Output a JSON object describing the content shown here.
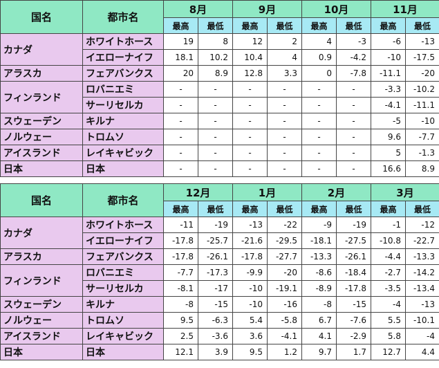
{
  "headers": {
    "country": "国名",
    "city": "都市名",
    "high": "最高",
    "low": "最低"
  },
  "table1": {
    "months": [
      "8月",
      "9月",
      "10月",
      "11月"
    ],
    "rows": [
      {
        "country": "カナダ",
        "city": "ホワイトホース",
        "v": [
          "19",
          "8",
          "12",
          "2",
          "4",
          "-3",
          "-6",
          "-13"
        ]
      },
      {
        "country": "",
        "city": "イエローナイフ",
        "v": [
          "18.1",
          "10.2",
          "10.4",
          "4",
          "0.9",
          "-4.2",
          "-10",
          "-17.5"
        ]
      },
      {
        "country": "アラスカ",
        "city": "フェアバンクス",
        "v": [
          "20",
          "8.9",
          "12.8",
          "3.3",
          "0",
          "-7.8",
          "-11.1",
          "-20"
        ]
      },
      {
        "country": "フィンランド",
        "city": "ロバニエミ",
        "v": [
          "-",
          "-",
          "-",
          "-",
          "-",
          "-",
          "-3.3",
          "-10.2"
        ]
      },
      {
        "country": "",
        "city": "サーリセルカ",
        "v": [
          "-",
          "-",
          "-",
          "-",
          "-",
          "-",
          "-4.1",
          "-11.1"
        ]
      },
      {
        "country": "スウェーデン",
        "city": "キルナ",
        "v": [
          "-",
          "-",
          "-",
          "-",
          "-",
          "-",
          "-5",
          "-10"
        ]
      },
      {
        "country": "ノルウェー",
        "city": "トロムソ",
        "v": [
          "-",
          "-",
          "-",
          "-",
          "-",
          "-",
          "9.6",
          "-7.7"
        ]
      },
      {
        "country": "アイスランド",
        "city": "レイキャビック",
        "v": [
          "-",
          "-",
          "-",
          "-",
          "-",
          "-",
          "5",
          "-1.3"
        ]
      },
      {
        "country": "日本",
        "city": "日本",
        "v": [
          "-",
          "-",
          "-",
          "-",
          "-",
          "-",
          "16.6",
          "8.9"
        ]
      }
    ]
  },
  "table2": {
    "months": [
      "12月",
      "1月",
      "2月",
      "3月"
    ],
    "rows": [
      {
        "country": "カナダ",
        "city": "ホワイトホース",
        "v": [
          "-11",
          "-19",
          "-13",
          "-22",
          "-9",
          "-19",
          "-1",
          "-12"
        ]
      },
      {
        "country": "",
        "city": "イエローナイフ",
        "v": [
          "-17.8",
          "-25.7",
          "-21.6",
          "-29.5",
          "-18.1",
          "-27.5",
          "-10.8",
          "-22.7"
        ]
      },
      {
        "country": "アラスカ",
        "city": "フェアバンクス",
        "v": [
          "-17.8",
          "-26.1",
          "-17.8",
          "-27.7",
          "-13.3",
          "-26.1",
          "-4.4",
          "-13.3"
        ]
      },
      {
        "country": "フィンランド",
        "city": "ロバニエミ",
        "v": [
          "-7.7",
          "-17.3",
          "-9.9",
          "-20",
          "-8.6",
          "-18.4",
          "-2.7",
          "-14.2"
        ]
      },
      {
        "country": "",
        "city": "サーリセルカ",
        "v": [
          "-8.1",
          "-17",
          "-10",
          "-19.1",
          "-8.9",
          "-17.8",
          "-3.5",
          "-13.4"
        ]
      },
      {
        "country": "スウェーデン",
        "city": "キルナ",
        "v": [
          "-8",
          "-15",
          "-10",
          "-16",
          "-8",
          "-15",
          "-4",
          "-13"
        ]
      },
      {
        "country": "ノルウェー",
        "city": "トロムソ",
        "v": [
          "9.5",
          "-6.3",
          "5.4",
          "-5.8",
          "6.7",
          "-7.6",
          "5.5",
          "-10.1"
        ]
      },
      {
        "country": "アイスランド",
        "city": "レイキャビック",
        "v": [
          "2.5",
          "-3.6",
          "3.6",
          "-4.1",
          "4.1",
          "-2.9",
          "5.8",
          "-4"
        ]
      },
      {
        "country": "日本",
        "city": "日本",
        "v": [
          "12.1",
          "3.9",
          "9.5",
          "1.2",
          "9.7",
          "1.7",
          "12.7",
          "4.4"
        ]
      }
    ]
  },
  "colors": {
    "header": "#8fe8c4",
    "subheader": "#a7e9f4",
    "label": "#e9c9ee"
  }
}
